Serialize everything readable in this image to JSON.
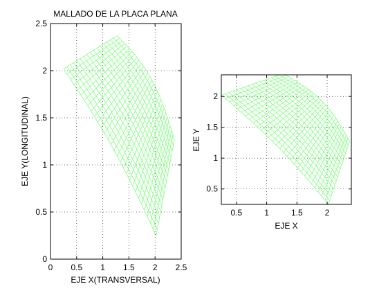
{
  "chart_data": [
    {
      "type": "line",
      "title": "MALLADO DE LA PLACA PLANA",
      "xlabel": "EJE X(TRANSVERSAL)",
      "ylabel": "EJE Y(LONGITUDINAL)",
      "xlim": [
        0,
        2.5
      ],
      "ylim": [
        0,
        2.5
      ],
      "xticks": [
        "0",
        "0.5",
        "1",
        "1.5",
        "2",
        "2.5"
      ],
      "yticks": [
        "0",
        "0.5",
        "1",
        "1.5",
        "2",
        "2.5"
      ],
      "grid": true,
      "line_color": "#80ff80",
      "mesh_corners": {
        "inner_top": [
          0.25,
          2.02
        ],
        "outer_top": [
          1.27,
          2.37
        ],
        "outer_bottom": [
          2.37,
          1.27
        ],
        "inner_bottom": [
          2.02,
          0.25
        ]
      },
      "mesh_radial_lines": 17,
      "mesh_arc_lines": 30
    },
    {
      "type": "line",
      "title": "",
      "xlabel": "EJE X",
      "ylabel": "EJE Y",
      "xlim": [
        0.25,
        2.4
      ],
      "ylim": [
        0.25,
        2.35
      ],
      "xticks": [
        "0.5",
        "1",
        "1.5",
        "2"
      ],
      "yticks": [
        "0.5",
        "1",
        "1.5",
        "2"
      ],
      "grid": true,
      "line_color": "#80ff80",
      "mesh_corners": {
        "inner_top": [
          0.25,
          2.02
        ],
        "outer_top": [
          1.27,
          2.37
        ],
        "outer_bottom": [
          2.37,
          1.27
        ],
        "inner_bottom": [
          2.02,
          0.25
        ]
      },
      "mesh_radial_lines": 17,
      "mesh_arc_lines": 30
    }
  ]
}
